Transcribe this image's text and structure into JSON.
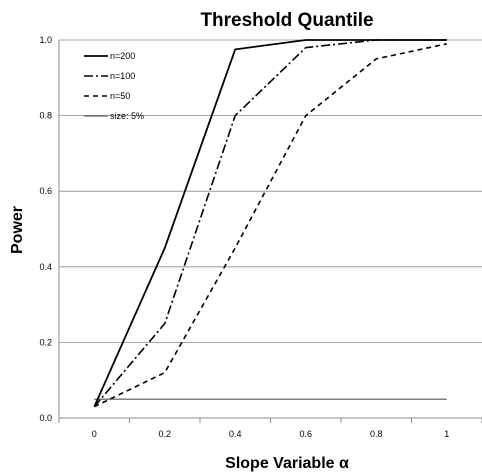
{
  "chart_data": {
    "type": "line",
    "title": "Threshold Quantile",
    "xlabel": "Slope Variable α",
    "ylabel": "Power",
    "x": [
      0,
      0.2,
      0.4,
      0.6,
      0.8,
      1
    ],
    "xticks": [
      "0",
      "0.2",
      "0.4",
      "0.6",
      "0.8",
      "1"
    ],
    "yticks": [
      "0.0",
      "0.2",
      "0.4",
      "0.6",
      "0.8",
      "1.0"
    ],
    "xlim": [
      -0.1,
      1.1
    ],
    "ylim": [
      0,
      1
    ],
    "grid": "horizontal",
    "legend_position": "top-left",
    "series": [
      {
        "name": "n=200",
        "style": "solid",
        "values": [
          0.03,
          0.45,
          0.975,
          1.0,
          1.0,
          1.0
        ]
      },
      {
        "name": "n=100",
        "style": "dashdot",
        "values": [
          0.03,
          0.25,
          0.8,
          0.98,
          1.0,
          1.0
        ]
      },
      {
        "name": "n=50",
        "style": "dashed",
        "values": [
          0.03,
          0.12,
          0.45,
          0.8,
          0.95,
          0.99
        ]
      },
      {
        "name": "size: 5%",
        "style": "thin",
        "values": [
          0.05,
          0.05,
          0.05,
          0.05,
          0.05,
          0.05
        ]
      }
    ]
  }
}
